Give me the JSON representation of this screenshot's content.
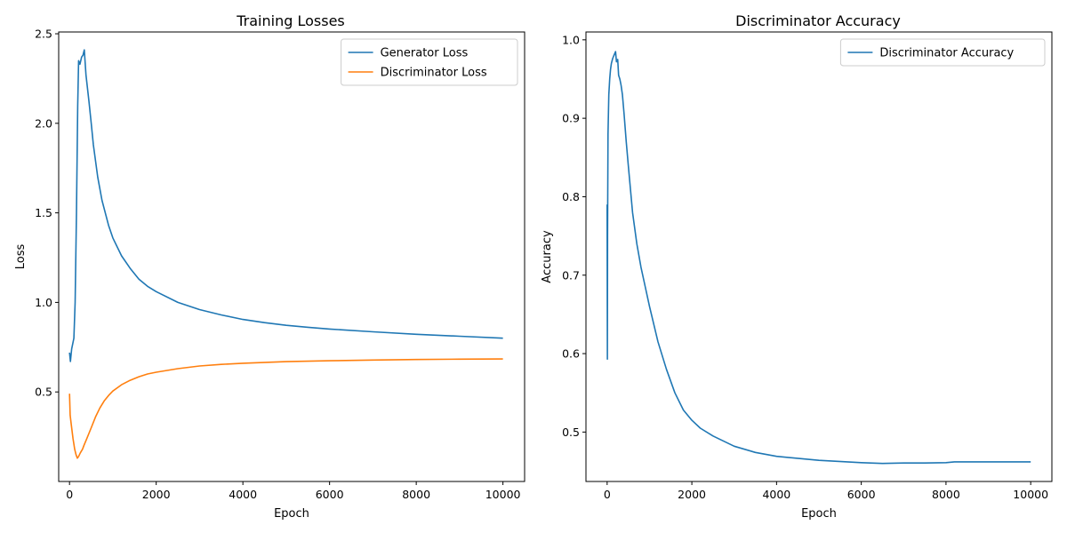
{
  "chart_data": [
    {
      "type": "line",
      "title": "Training Losses",
      "xlabel": "Epoch",
      "ylabel": "Loss",
      "xlim": [
        -250,
        10500
      ],
      "ylim": [
        0.0,
        2.51
      ],
      "xticks": [
        0,
        2000,
        4000,
        6000,
        8000,
        10000
      ],
      "yticks": [
        0.5,
        1.0,
        1.5,
        2.0,
        2.5
      ],
      "ytick_decimals": 1,
      "legend": "top-right",
      "grid": false,
      "series": [
        {
          "name": "Generator Loss",
          "color": "#1f77b4",
          "points": [
            [
              0,
              0.72
            ],
            [
              20,
              0.67
            ],
            [
              50,
              0.74
            ],
            [
              100,
              0.8
            ],
            [
              130,
              1.0
            ],
            [
              160,
              1.5
            ],
            [
              190,
              2.1
            ],
            [
              210,
              2.35
            ],
            [
              240,
              2.33
            ],
            [
              280,
              2.37
            ],
            [
              310,
              2.38
            ],
            [
              340,
              2.41
            ],
            [
              380,
              2.27
            ],
            [
              450,
              2.12
            ],
            [
              500,
              2.0
            ],
            [
              550,
              1.88
            ],
            [
              650,
              1.7
            ],
            [
              750,
              1.57
            ],
            [
              900,
              1.43
            ],
            [
              1000,
              1.36
            ],
            [
              1200,
              1.26
            ],
            [
              1400,
              1.19
            ],
            [
              1600,
              1.13
            ],
            [
              1800,
              1.09
            ],
            [
              2000,
              1.06
            ],
            [
              2500,
              1.0
            ],
            [
              3000,
              0.96
            ],
            [
              3500,
              0.93
            ],
            [
              4000,
              0.905
            ],
            [
              4500,
              0.887
            ],
            [
              5000,
              0.872
            ],
            [
              5500,
              0.861
            ],
            [
              6000,
              0.851
            ],
            [
              7000,
              0.836
            ],
            [
              8000,
              0.822
            ],
            [
              9000,
              0.811
            ],
            [
              10000,
              0.8
            ]
          ]
        },
        {
          "name": "Discriminator Loss",
          "color": "#ff7f0e",
          "points": [
            [
              0,
              0.49
            ],
            [
              15,
              0.37
            ],
            [
              40,
              0.32
            ],
            [
              80,
              0.24
            ],
            [
              120,
              0.18
            ],
            [
              150,
              0.15
            ],
            [
              180,
              0.13
            ],
            [
              210,
              0.14
            ],
            [
              250,
              0.16
            ],
            [
              300,
              0.18
            ],
            [
              330,
              0.2
            ],
            [
              400,
              0.24
            ],
            [
              500,
              0.3
            ],
            [
              600,
              0.36
            ],
            [
              700,
              0.41
            ],
            [
              800,
              0.45
            ],
            [
              900,
              0.48
            ],
            [
              1000,
              0.505
            ],
            [
              1200,
              0.54
            ],
            [
              1400,
              0.565
            ],
            [
              1600,
              0.585
            ],
            [
              1800,
              0.6
            ],
            [
              2000,
              0.61
            ],
            [
              2500,
              0.63
            ],
            [
              3000,
              0.645
            ],
            [
              3500,
              0.654
            ],
            [
              4000,
              0.66
            ],
            [
              5000,
              0.669
            ],
            [
              6000,
              0.674
            ],
            [
              7000,
              0.678
            ],
            [
              8000,
              0.681
            ],
            [
              9000,
              0.683
            ],
            [
              10000,
              0.684
            ]
          ]
        }
      ]
    },
    {
      "type": "line",
      "title": "Discriminator Accuracy",
      "xlabel": "Epoch",
      "ylabel": "Accuracy",
      "xlim": [
        -500,
        10500
      ],
      "ylim": [
        0.437,
        1.01
      ],
      "xticks": [
        0,
        2000,
        4000,
        6000,
        8000,
        10000
      ],
      "yticks": [
        0.5,
        0.6,
        0.7,
        0.8,
        0.9,
        1.0
      ],
      "ytick_decimals": 1,
      "legend": "top-right",
      "grid": false,
      "series": [
        {
          "name": "Discriminator Accuracy",
          "color": "#1f77b4",
          "points": [
            [
              0,
              0.79
            ],
            [
              5,
              0.593
            ],
            [
              10,
              0.75
            ],
            [
              20,
              0.88
            ],
            [
              40,
              0.93
            ],
            [
              60,
              0.95
            ],
            [
              80,
              0.962
            ],
            [
              100,
              0.97
            ],
            [
              130,
              0.976
            ],
            [
              160,
              0.98
            ],
            [
              200,
              0.985
            ],
            [
              220,
              0.972
            ],
            [
              250,
              0.975
            ],
            [
              270,
              0.955
            ],
            [
              300,
              0.95
            ],
            [
              330,
              0.942
            ],
            [
              360,
              0.93
            ],
            [
              400,
              0.905
            ],
            [
              450,
              0.87
            ],
            [
              500,
              0.84
            ],
            [
              550,
              0.81
            ],
            [
              600,
              0.78
            ],
            [
              700,
              0.74
            ],
            [
              800,
              0.71
            ],
            [
              900,
              0.685
            ],
            [
              1000,
              0.66
            ],
            [
              1200,
              0.615
            ],
            [
              1400,
              0.58
            ],
            [
              1600,
              0.55
            ],
            [
              1800,
              0.528
            ],
            [
              2000,
              0.515
            ],
            [
              2200,
              0.505
            ],
            [
              2500,
              0.495
            ],
            [
              3000,
              0.482
            ],
            [
              3500,
              0.474
            ],
            [
              4000,
              0.469
            ],
            [
              5000,
              0.464
            ],
            [
              6000,
              0.461
            ],
            [
              6500,
              0.46
            ],
            [
              7000,
              0.4605
            ],
            [
              7500,
              0.4605
            ],
            [
              8000,
              0.461
            ],
            [
              8200,
              0.462
            ],
            [
              9000,
              0.462
            ],
            [
              10000,
              0.462
            ]
          ]
        }
      ]
    }
  ]
}
